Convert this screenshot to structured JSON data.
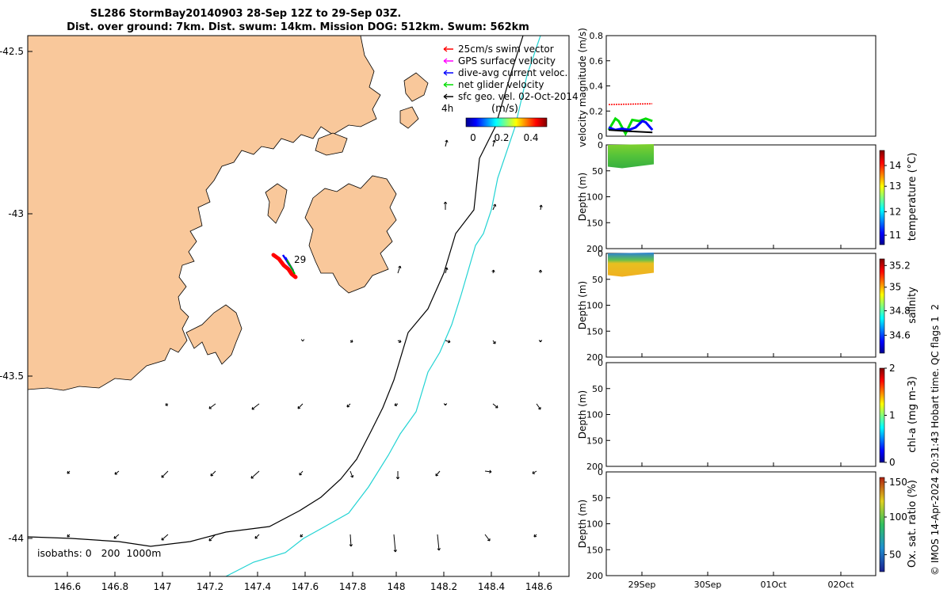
{
  "title": {
    "line1": "SL286 StormBay20140903 28-Sep 12Z to 29-Sep 03Z.",
    "line2": "Dist. over ground: 7km. Dist. swum: 14km. Mission DOG: 512km. Swum: 562km"
  },
  "footer": "© IMOS 14-Apr-2024 20:31:43 Hobart time. QC flags 1  2",
  "colors": {
    "land": "#f9c89b",
    "track": "#ff0000",
    "glider_vec": "#0000ff",
    "net_vel": "#00dd00",
    "isobath_200": "#000000",
    "isobath_1000": "#22d3d3"
  },
  "map": {
    "xticks": [
      "146.6",
      "146.8",
      "147",
      "147.2",
      "147.4",
      "147.6",
      "147.8",
      "148",
      "148.2",
      "148.4",
      "148.6"
    ],
    "yticks": [
      "-42.5",
      "-43",
      "-43.5",
      "-44"
    ],
    "legend": [
      {
        "label": "25cm/s swim vector",
        "color": "#ff0000"
      },
      {
        "label": "GPS surface velocity",
        "color": "#ff00ff"
      },
      {
        "label": "dive-avg current veloc.",
        "color": "#0000ff"
      },
      {
        "label": "net glider velocity",
        "color": "#00dd00"
      },
      {
        "label": "sfc geo. vel. 02-Oct-2014",
        "color": "#000000"
      }
    ],
    "vec_scale_label": "4h",
    "colorbar_unit": "(m/s)",
    "colorbar_ticks": [
      "0",
      "0.2",
      "0.4"
    ],
    "track_label": "29",
    "isobath_label": "isobaths: 0   200  1000m"
  },
  "chart_data": [
    {
      "type": "line",
      "title": "",
      "ylabel": "velocity magnitude (m/s)",
      "ylim": [
        0,
        0.8
      ],
      "yticks": [
        "0",
        "0.2",
        "0.4",
        "0.6",
        "0.8"
      ],
      "xticks": [
        "29Sep",
        "30Sep",
        "01Oct",
        "02Oct"
      ],
      "series": [
        {
          "color": "#00dd00",
          "x": [
            28.5,
            28.6,
            28.65,
            28.75,
            28.85,
            28.95,
            29.05,
            29.15
          ],
          "y": [
            0.05,
            0.14,
            0.12,
            0.02,
            0.13,
            0.12,
            0.14,
            0.12
          ]
        },
        {
          "color": "#0000ff",
          "x": [
            28.5,
            28.6,
            28.7,
            28.8,
            28.9,
            29.0,
            29.05,
            29.1,
            29.15
          ],
          "y": [
            0.07,
            0.05,
            0.06,
            0.05,
            0.07,
            0.12,
            0.11,
            0.08,
            0.05
          ]
        },
        {
          "color": "#000000",
          "x": [
            28.5,
            28.8,
            29.15
          ],
          "y": [
            0.05,
            0.04,
            0.03
          ]
        }
      ]
    },
    {
      "type": "heatmap",
      "ylabel": "Depth (m)",
      "clabel": "temperature (°C)",
      "ylim": [
        200,
        0
      ],
      "yticks": [
        "0",
        "50",
        "100",
        "150",
        "200"
      ],
      "cticks": [
        "11",
        "12",
        "13",
        "14"
      ],
      "depth_range": [
        0,
        45
      ]
    },
    {
      "type": "heatmap",
      "ylabel": "Depth (m)",
      "clabel": "salinity",
      "ylim": [
        200,
        0
      ],
      "yticks": [
        "0",
        "50",
        "100",
        "150",
        "200"
      ],
      "cticks": [
        "34.6",
        "34.8",
        "35",
        "35.2"
      ],
      "depth_range": [
        0,
        45
      ]
    },
    {
      "type": "heatmap",
      "ylabel": "Depth (m)",
      "clabel": "chl-a (mg m-3)",
      "ylim": [
        200,
        0
      ],
      "yticks": [
        "0",
        "50",
        "100",
        "150",
        "200"
      ],
      "cticks": [
        "0",
        "1",
        "2"
      ]
    },
    {
      "type": "heatmap",
      "ylabel": "Depth (m)",
      "clabel": "Ox. sat. ratio (%)",
      "ylim": [
        200,
        0
      ],
      "yticks": [
        "0",
        "50",
        "100",
        "150",
        "200"
      ],
      "cticks": [
        "50",
        "100",
        "150"
      ],
      "xticks": [
        "29Sep",
        "30Sep",
        "01Oct",
        "02Oct"
      ]
    }
  ]
}
